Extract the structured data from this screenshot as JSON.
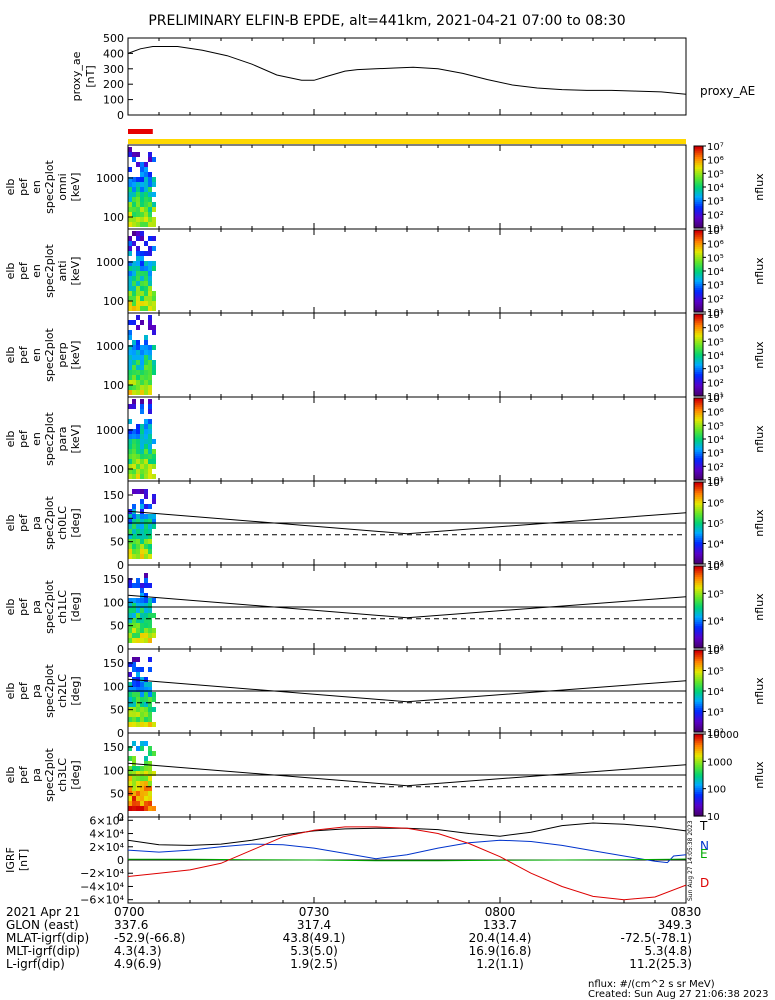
{
  "chart_data": {
    "type": "line",
    "title": "PRELIMINARY ELFIN-B EPDE, alt=441km, 2021-04-21 07:00 to 08:30",
    "time_range_min": [
      0,
      90
    ],
    "ae": {
      "ylabel": "proxy_ae [nT]",
      "ylim": [
        0,
        500
      ],
      "ticks": [
        "0",
        "100",
        "200",
        "300",
        "400",
        "500"
      ],
      "tick_values": [
        0,
        100,
        200,
        300,
        400,
        500
      ],
      "legend": "proxy_AE",
      "t": [
        0,
        2,
        4,
        8,
        12,
        16,
        20,
        24,
        28,
        30,
        32,
        35,
        37,
        40,
        43,
        46,
        50,
        54,
        58,
        62,
        66,
        70,
        74,
        78,
        82,
        86,
        90
      ],
      "v": [
        400,
        430,
        445,
        445,
        420,
        385,
        330,
        260,
        225,
        225,
        250,
        285,
        295,
        300,
        305,
        310,
        300,
        270,
        230,
        195,
        175,
        165,
        160,
        160,
        155,
        150,
        135
      ]
    },
    "bars": {
      "red_end_min": 4.0,
      "yellow_end_min": 90
    },
    "spectra": [
      {
        "ylabel": [
          "elb",
          "pef",
          "en",
          "spec2plot",
          "omni",
          "[keV]"
        ],
        "ticks": [
          "100",
          "1000"
        ],
        "cb_ticks": [
          "10¹",
          "10²",
          "10³",
          "10⁴",
          "10⁵",
          "10⁶",
          "10⁷"
        ],
        "cb_label": "nflux"
      },
      {
        "ylabel": [
          "elb",
          "pef",
          "en",
          "spec2plot",
          "anti",
          "[keV]"
        ],
        "ticks": [
          "100",
          "1000"
        ],
        "cb_ticks": [
          "10¹",
          "10²",
          "10³",
          "10⁴",
          "10⁵",
          "10⁶",
          "10⁷"
        ],
        "cb_label": "nflux"
      },
      {
        "ylabel": [
          "elb",
          "pef",
          "en",
          "spec2plot",
          "perp",
          "[keV]"
        ],
        "ticks": [
          "100",
          "1000"
        ],
        "cb_ticks": [
          "10¹",
          "10²",
          "10³",
          "10⁴",
          "10⁵",
          "10⁶",
          "10⁷"
        ],
        "cb_label": "nflux"
      },
      {
        "ylabel": [
          "elb",
          "pef",
          "en",
          "spec2plot",
          "para",
          "[keV]"
        ],
        "ticks": [
          "100",
          "1000"
        ],
        "cb_ticks": [
          "10¹",
          "10²",
          "10³",
          "10⁴",
          "10⁵",
          "10⁶",
          "10⁷"
        ],
        "cb_label": "nflux"
      }
    ],
    "pitch": [
      {
        "ylabel": [
          "elb",
          "pef",
          "pa",
          "spec2plot",
          "ch0LC",
          "[deg]"
        ],
        "ticks": [
          "0",
          "50",
          "100",
          "150"
        ],
        "cb_ticks": [
          "10³",
          "10⁴",
          "10⁵",
          "10⁶",
          "10⁷"
        ],
        "cb_label": "nflux"
      },
      {
        "ylabel": [
          "elb",
          "pef",
          "pa",
          "spec2plot",
          "ch1LC",
          "[deg]"
        ],
        "ticks": [
          "0",
          "50",
          "100",
          "150"
        ],
        "cb_ticks": [
          "10³",
          "10⁴",
          "10⁵",
          "10⁶"
        ],
        "cb_label": "nflux"
      },
      {
        "ylabel": [
          "elb",
          "pef",
          "pa",
          "spec2plot",
          "ch2LC",
          "[deg]"
        ],
        "ticks": [
          "0",
          "50",
          "100",
          "150"
        ],
        "cb_ticks": [
          "10²",
          "10³",
          "10⁴",
          "10⁵",
          "10⁶"
        ],
        "cb_label": "nflux"
      },
      {
        "ylabel": [
          "elb",
          "pef",
          "pa",
          "spec2plot",
          "ch3LC",
          "[deg]"
        ],
        "ticks": [
          "0",
          "50",
          "100",
          "150"
        ],
        "cb_ticks": [
          "10",
          "100",
          "1000",
          "10000"
        ],
        "cb_label": "nflux"
      }
    ],
    "loss_cone": {
      "t": [
        0,
        45,
        90
      ],
      "solid": [
        115,
        67,
        112
      ],
      "dashed": [
        90,
        90,
        90
      ],
      "flat_dashed": [
        65,
        65,
        65
      ]
    },
    "grf": {
      "ylabel": [
        "IGRF",
        "[nT]"
      ],
      "ylim": [
        -65000,
        65000
      ],
      "ticks": [
        "−6×10⁴",
        "−4×10⁴",
        "−2×10⁴",
        "0",
        "2×10⁴",
        "4×10⁴",
        "6×10⁴"
      ],
      "tick_values": [
        -60000,
        -40000,
        -20000,
        0,
        20000,
        40000,
        60000
      ],
      "stamp": "Sun Aug 27 14:05:38 2023",
      "series": [
        {
          "name": "T",
          "color": "#000000",
          "t": [
            0,
            5,
            10,
            15,
            20,
            25,
            30,
            35,
            40,
            45,
            50,
            55,
            60,
            65,
            70,
            75,
            80,
            85,
            90
          ],
          "v": [
            30000,
            23000,
            22000,
            24000,
            30000,
            38000,
            44000,
            47000,
            48000,
            48000,
            46000,
            40000,
            36000,
            42000,
            52000,
            56000,
            54000,
            50000,
            44000
          ]
        },
        {
          "name": "N",
          "color": "#0033cc",
          "t": [
            0,
            5,
            10,
            15,
            20,
            25,
            30,
            35,
            40,
            45,
            50,
            55,
            60,
            65,
            70,
            75,
            80,
            85,
            87,
            88,
            90
          ],
          "v": [
            15000,
            12000,
            15000,
            20000,
            24000,
            23000,
            18000,
            10000,
            2000,
            8000,
            18000,
            26000,
            30000,
            28000,
            22000,
            14000,
            6000,
            -2000,
            -4000,
            6000,
            8000
          ]
        },
        {
          "name": "E",
          "color": "#00aa00",
          "t": [
            0,
            10,
            20,
            30,
            40,
            50,
            60,
            70,
            80,
            88,
            90
          ],
          "v": [
            1000,
            1000,
            500,
            0,
            -1000,
            -1000,
            -500,
            0,
            500,
            1000,
            1500
          ]
        },
        {
          "name": "D",
          "color": "#dd0000",
          "t": [
            0,
            5,
            10,
            15,
            20,
            25,
            30,
            35,
            40,
            45,
            50,
            55,
            60,
            65,
            70,
            75,
            80,
            85,
            90
          ],
          "v": [
            -25000,
            -20000,
            -15000,
            -5000,
            15000,
            35000,
            45000,
            50000,
            50000,
            48000,
            40000,
            25000,
            5000,
            -20000,
            -40000,
            -55000,
            -60000,
            -56000,
            -38000
          ]
        }
      ]
    },
    "time_axis": {
      "labels": [
        "0700",
        "0730",
        "0800",
        "0830"
      ],
      "label_min": [
        0,
        30,
        60,
        90
      ],
      "rows": [
        {
          "label": "2021 Apr 21",
          "vals": [
            "",
            "",
            "",
            ""
          ]
        },
        {
          "label": "GLON (east)",
          "vals": [
            "337.6",
            "317.4",
            "133.7",
            "349.3"
          ]
        },
        {
          "label": "MLAT-igrf(dip)",
          "vals": [
            "-52.9(-66.8)",
            "43.8(49.1)",
            "20.4(14.4)",
            "-72.5(-78.1)"
          ]
        },
        {
          "label": "MLT-igrf(dip)",
          "vals": [
            "4.3(4.3)",
            "5.3(5.0)",
            "16.9(16.8)",
            "5.3(4.8)"
          ]
        },
        {
          "label": "L-igrf(dip)",
          "vals": [
            "4.9(6.9)",
            "1.9(2.5)",
            "1.2(1.1)",
            "11.2(25.3)"
          ]
        }
      ]
    },
    "footer": {
      "units": "nflux: #/(cm^2 s sr MeV)",
      "created": "Created: Sun Aug 27 21:06:38 2023"
    }
  }
}
